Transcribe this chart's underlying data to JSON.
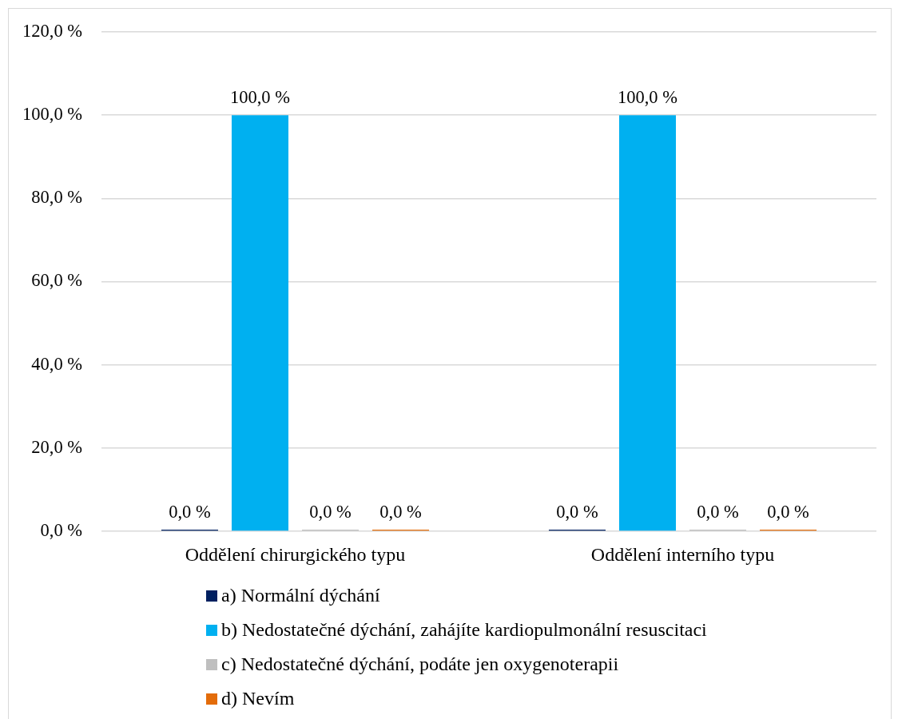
{
  "chart_data": {
    "type": "bar",
    "categories": [
      "Oddělení chirurgického typu",
      "Oddělení interního typu"
    ],
    "series": [
      {
        "name": "a) Normální dýchání",
        "color": "#002060",
        "values": [
          0,
          0
        ],
        "value_labels": [
          "0,0 %",
          "0,0 %"
        ]
      },
      {
        "name": "b) Nedostatečné dýchání, zahájíte kardiopulmonální resuscitaci",
        "color": "#00b0f0",
        "values": [
          100,
          100
        ],
        "value_labels": [
          "100,0 %",
          "100,0 %"
        ]
      },
      {
        "name": "c) Nedostatečné dýchání, podáte jen oxygenoterapii",
        "color": "#bfbfbf",
        "values": [
          0,
          0
        ],
        "value_labels": [
          "0,0 %",
          "0,0 %"
        ]
      },
      {
        "name": "d) Nevím",
        "color": "#e36c0a",
        "values": [
          0,
          0
        ],
        "value_labels": [
          "0,0 %",
          "0,0 %"
        ]
      }
    ],
    "ylim": [
      0,
      120
    ],
    "yticks": [
      {
        "value": 0,
        "label": "0,0 %"
      },
      {
        "value": 20,
        "label": "20,0 %"
      },
      {
        "value": 40,
        "label": "40,0 %"
      },
      {
        "value": 60,
        "label": "60,0 %"
      },
      {
        "value": 80,
        "label": "80,0 %"
      },
      {
        "value": 100,
        "label": "100,0 %"
      },
      {
        "value": 120,
        "label": "120,0 %"
      }
    ],
    "grid": "y",
    "legend": "bottom"
  }
}
